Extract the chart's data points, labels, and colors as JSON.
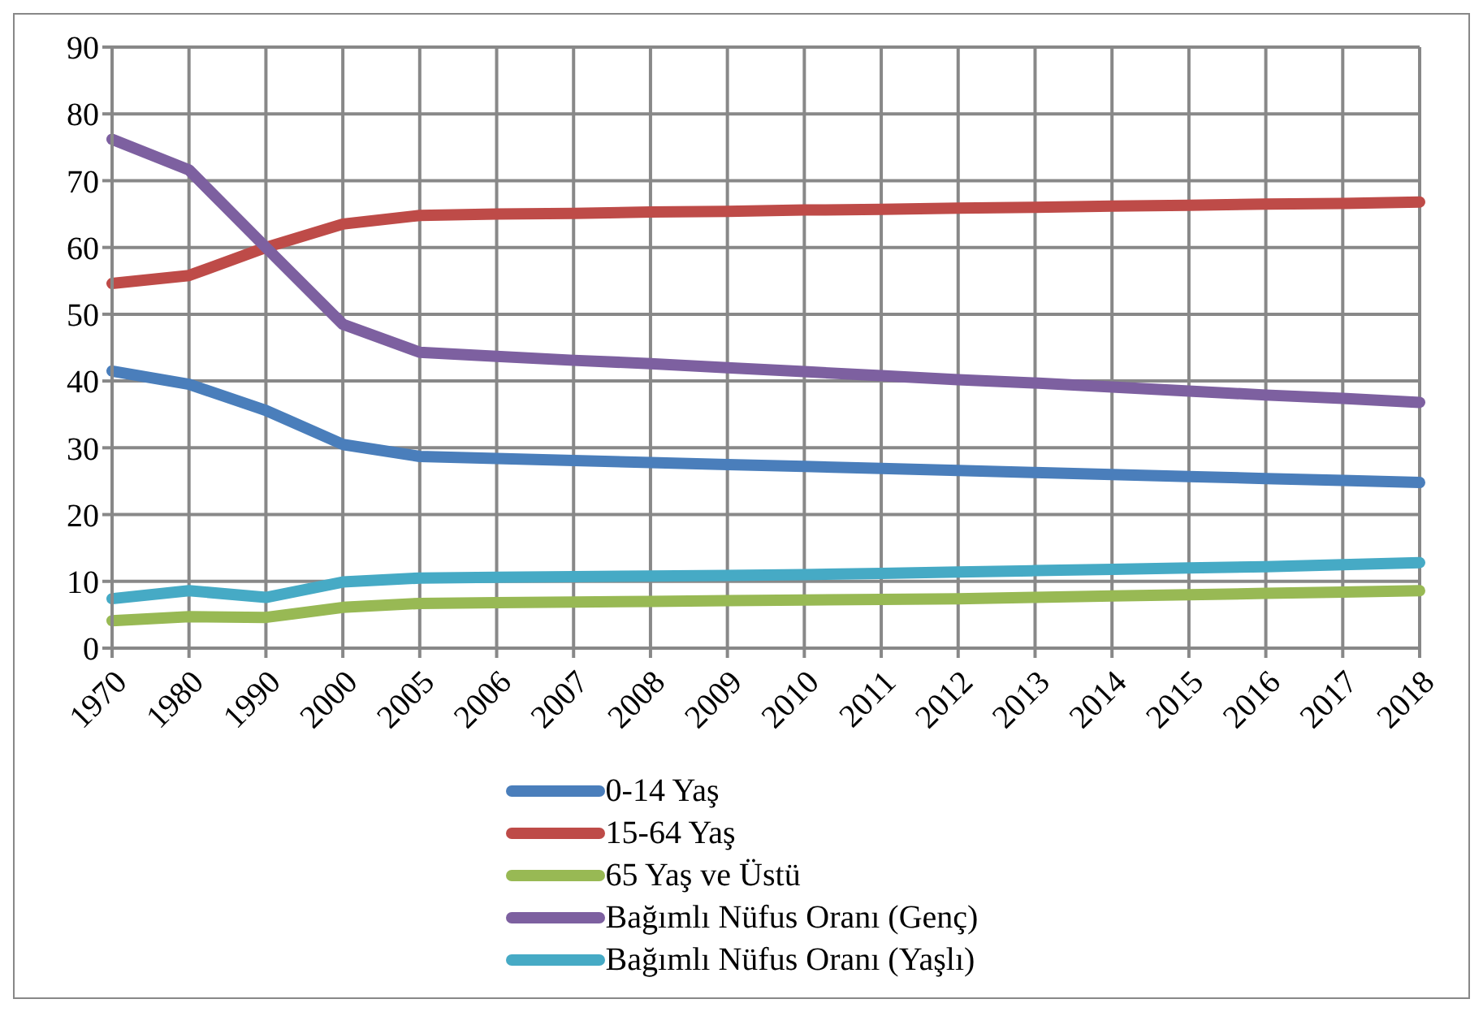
{
  "chart_data": {
    "type": "line",
    "categories": [
      "1970",
      "1980",
      "1990",
      "2000",
      "2005",
      "2006",
      "2007",
      "2008",
      "2009",
      "2010",
      "2011",
      "2012",
      "2013",
      "2014",
      "2015",
      "2016",
      "2017",
      "2018"
    ],
    "series": [
      {
        "name": "0-14 Yaş",
        "color": "#4a7ebb",
        "values": [
          41.5,
          39.5,
          35.6,
          30.5,
          28.7,
          28.4,
          28.1,
          27.8,
          27.5,
          27.2,
          26.9,
          26.6,
          26.3,
          26.0,
          25.7,
          25.4,
          25.1,
          24.8
        ]
      },
      {
        "name": "15-64 Yaş",
        "color": "#be4b48",
        "values": [
          54.6,
          55.8,
          60,
          63.5,
          64.8,
          65.0,
          65.1,
          65.3,
          65.4,
          65.6,
          65.7,
          65.9,
          66.0,
          66.2,
          66.3,
          66.5,
          66.6,
          66.8
        ]
      },
      {
        "name": "65 Yaş ve Üstü",
        "color": "#98b954",
        "values": [
          4.1,
          4.7,
          4.6,
          6.1,
          6.7,
          6.8,
          6.9,
          7.0,
          7.1,
          7.2,
          7.3,
          7.4,
          7.6,
          7.8,
          8.0,
          8.2,
          8.4,
          8.6
        ]
      },
      {
        "name": "Bağımlı Nüfus Oranı (Genç)",
        "color": "#7d60a0",
        "values": [
          76.2,
          71.6,
          60,
          48.5,
          44.3,
          43.7,
          43.1,
          42.6,
          42.0,
          41.4,
          40.8,
          40.2,
          39.7,
          39.1,
          38.5,
          37.9,
          37.4,
          36.8
        ]
      },
      {
        "name": "Bağımlı Nüfus Oranı (Yaşlı)",
        "color": "#46aac5",
        "values": [
          7.4,
          8.6,
          7.6,
          9.9,
          10.5,
          10.6,
          10.7,
          10.8,
          10.9,
          11.0,
          11.2,
          11.4,
          11.6,
          11.8,
          12.0,
          12.2,
          12.5,
          12.8
        ]
      }
    ],
    "ylim": [
      0,
      90
    ],
    "yticks": [
      0,
      10,
      20,
      30,
      40,
      50,
      60,
      70,
      80,
      90
    ],
    "grid": true,
    "legend": "bottom",
    "marker": "none",
    "line_style": "solid"
  }
}
